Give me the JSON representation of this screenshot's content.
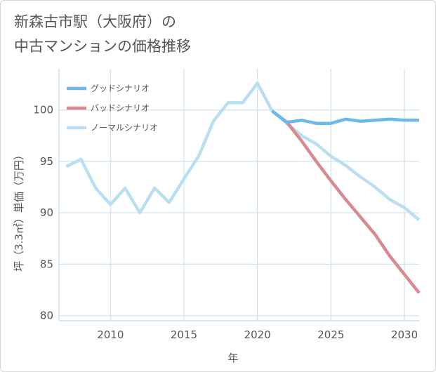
{
  "title": {
    "line1": "新森古市駅（大阪府）の",
    "line2": "中古マンションの価格推移"
  },
  "chart_data": {
    "type": "line",
    "title": "新森古市駅（大阪府）の中古マンションの価格推移",
    "xlabel": "年",
    "ylabel": "坪（3.3㎡）単価（万円）",
    "xlim": [
      2006.5,
      2031
    ],
    "ylim": [
      79.5,
      104
    ],
    "x_ticks": [
      2010,
      2015,
      2020,
      2025,
      2030
    ],
    "y_ticks": [
      80,
      85,
      90,
      95,
      100
    ],
    "grid": true,
    "legend_position": "top-left",
    "series": [
      {
        "name": "グッドシナリオ",
        "color": "#6cb9ec",
        "x": [
          2021,
          2022,
          2023,
          2024,
          2025,
          2026,
          2027,
          2028,
          2029,
          2030,
          2031
        ],
        "y": [
          99.9,
          98.8,
          99.0,
          98.7,
          98.7,
          99.1,
          98.9,
          99.0,
          99.1,
          99.0,
          99.0
        ]
      },
      {
        "name": "バッドシナリオ",
        "color": "#d98a90",
        "x": [
          2021,
          2022,
          2023,
          2024,
          2025,
          2026,
          2027,
          2028,
          2029,
          2030,
          2031
        ],
        "y": [
          99.9,
          98.8,
          97.0,
          95.0,
          93.1,
          91.3,
          89.6,
          87.9,
          85.8,
          84.0,
          82.2
        ]
      },
      {
        "name": "ノーマルシナリオ",
        "color": "#b9dff0",
        "x": [
          2007,
          2008,
          2009,
          2010,
          2011,
          2012,
          2013,
          2014,
          2015,
          2016,
          2017,
          2018,
          2019,
          2020,
          2021,
          2022,
          2023,
          2024,
          2025,
          2026,
          2027,
          2028,
          2029,
          2030,
          2031
        ],
        "y": [
          94.5,
          95.2,
          92.4,
          90.8,
          92.4,
          90.0,
          92.4,
          91.0,
          93.3,
          95.5,
          98.9,
          100.7,
          100.7,
          102.6,
          99.9,
          98.7,
          97.5,
          96.7,
          95.5,
          94.6,
          93.5,
          92.5,
          91.3,
          90.5,
          89.3
        ]
      }
    ]
  }
}
